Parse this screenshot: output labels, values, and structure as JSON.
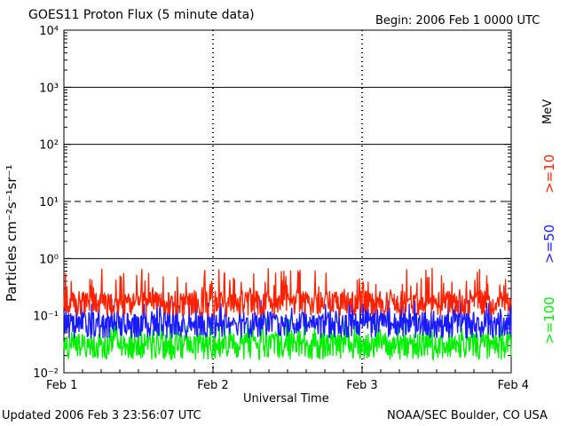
{
  "header": {
    "title": "GOES11 Proton Flux (5 minute data)",
    "begin": "Begin: 2006 Feb 1 0000 UTC"
  },
  "footer": {
    "updated": "Updated 2006 Feb  3 23:56:07 UTC",
    "credit": "NOAA/SEC Boulder, CO USA"
  },
  "legend": {
    "unit": "MeV",
    "series_labels": [
      ">=10",
      ">=50",
      ">=100"
    ]
  },
  "chart_data": {
    "type": "line",
    "title": "GOES11 Proton Flux (5 minute data)",
    "xlabel": "Universal Time",
    "ylabel": "Particles cm⁻²s⁻¹sr⁻¹",
    "yscale": "log",
    "ylim": [
      0.01,
      10000
    ],
    "ytick_labels": [
      "10⁻²",
      "10⁻¹",
      "10⁰",
      "10¹",
      "10²",
      "10³",
      "10⁴"
    ],
    "xlim": [
      0,
      3
    ],
    "x_categories": [
      "Feb 1",
      "Feb 2",
      "Feb 3",
      "Feb 4"
    ],
    "reference_lines": [
      {
        "value": 1000,
        "style": "solid"
      },
      {
        "value": 100,
        "style": "solid"
      },
      {
        "value": 10,
        "style": "dashed"
      },
      {
        "value": 1,
        "style": "solid"
      }
    ],
    "series": [
      {
        "name": ">=10 MeV",
        "color": "#ff2200",
        "typical": 0.17,
        "low": 0.1,
        "high": 0.7
      },
      {
        "name": ">=50 MeV",
        "color": "#1a1aff",
        "typical": 0.07,
        "low": 0.04,
        "high": 0.2
      },
      {
        "name": ">=100 MeV",
        "color": "#00ee00",
        "typical": 0.03,
        "low": 0.017,
        "high": 0.09
      }
    ]
  }
}
